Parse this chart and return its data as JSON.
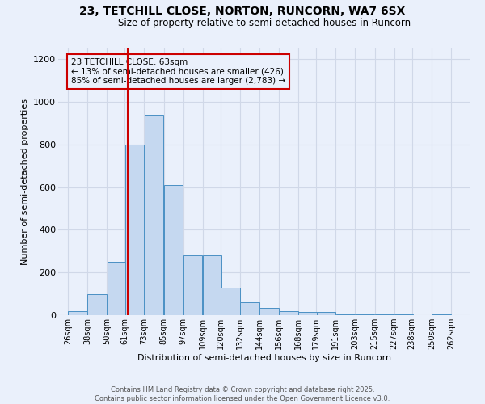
{
  "title_line1": "23, TETCHILL CLOSE, NORTON, RUNCORN, WA7 6SX",
  "title_line2": "Size of property relative to semi-detached houses in Runcorn",
  "xlabel": "Distribution of semi-detached houses by size in Runcorn",
  "ylabel": "Number of semi-detached properties",
  "annotation_title": "23 TETCHILL CLOSE: 63sqm",
  "annotation_line2": "← 13% of semi-detached houses are smaller (426)",
  "annotation_line3": "85% of semi-detached houses are larger (2,783) →",
  "footer_line1": "Contains HM Land Registry data © Crown copyright and database right 2025.",
  "footer_line2": "Contains public sector information licensed under the Open Government Licence v3.0.",
  "bar_left_edges": [
    26,
    38,
    50,
    61,
    73,
    85,
    97,
    109,
    120,
    132,
    144,
    156,
    168,
    179,
    191,
    203,
    215,
    227,
    238,
    250
  ],
  "bar_heights": [
    20,
    100,
    250,
    800,
    940,
    610,
    280,
    280,
    130,
    60,
    35,
    20,
    15,
    15,
    5,
    5,
    2,
    2,
    0,
    5
  ],
  "bar_color": "#c5d8f0",
  "bar_edge_color": "#4a90c4",
  "red_line_x": 63,
  "red_line_color": "#cc0000",
  "ylim": [
    0,
    1250
  ],
  "yticks": [
    0,
    200,
    400,
    600,
    800,
    1000,
    1200
  ],
  "xtick_labels": [
    "26sqm",
    "38sqm",
    "50sqm",
    "61sqm",
    "73sqm",
    "85sqm",
    "97sqm",
    "109sqm",
    "120sqm",
    "132sqm",
    "144sqm",
    "156sqm",
    "168sqm",
    "179sqm",
    "191sqm",
    "203sqm",
    "215sqm",
    "227sqm",
    "238sqm",
    "250sqm",
    "262sqm"
  ],
  "xtick_positions": [
    26,
    38,
    50,
    61,
    73,
    85,
    97,
    109,
    120,
    132,
    144,
    156,
    168,
    179,
    191,
    203,
    215,
    227,
    238,
    250,
    262
  ],
  "grid_color": "#d0d8e8",
  "background_color": "#eaf0fb",
  "xlim": [
    20,
    274
  ]
}
